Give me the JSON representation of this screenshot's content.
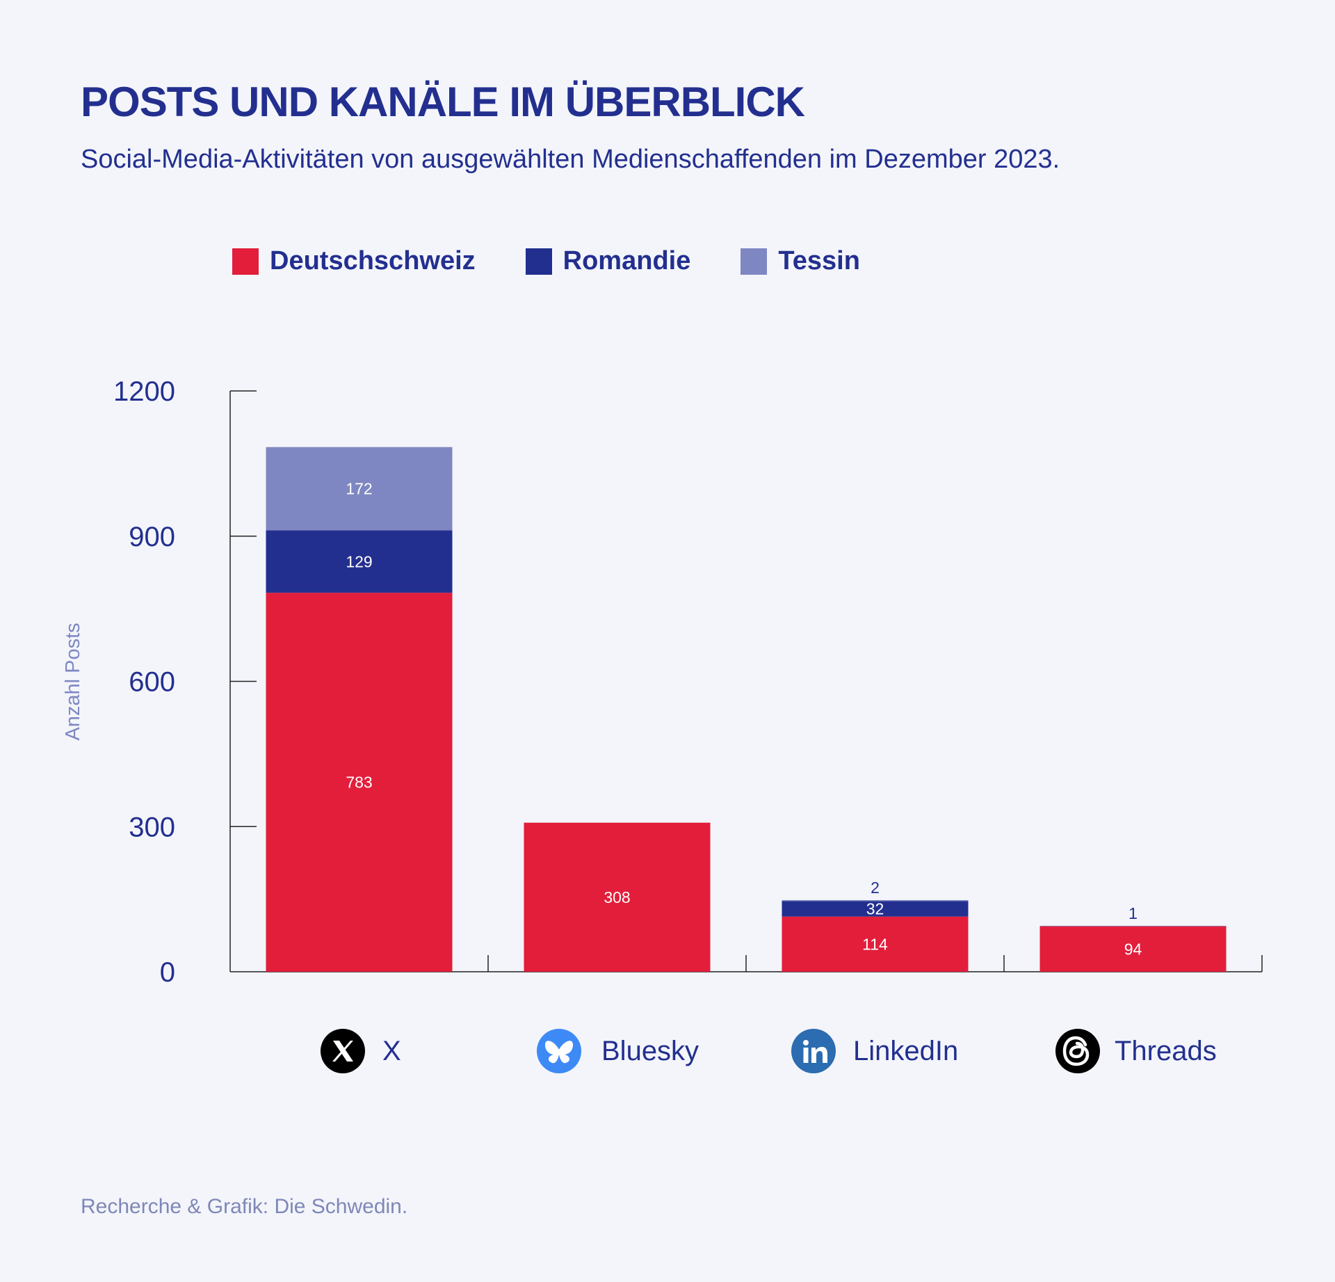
{
  "header": {
    "title": "POSTS UND KANÄLE IM ÜBERBLICK",
    "subtitle": "Social-Media-Aktivitäten von ausgewählten Medienschaffenden im Dezember 2023."
  },
  "legend": [
    {
      "label": "Deutschschweiz",
      "color": "#e21e3b"
    },
    {
      "label": "Romandie",
      "color": "#232f8f"
    },
    {
      "label": "Tessin",
      "color": "#7f87c2"
    }
  ],
  "footer": {
    "credit": "Recherche & Grafik: Die Schwedin."
  },
  "icons": [
    {
      "name": "x-logo-icon",
      "bg": "#000000"
    },
    {
      "name": "bluesky-logo-icon",
      "bg": "#3d8af7"
    },
    {
      "name": "linkedin-logo-icon",
      "bg": "#2c6cb0"
    },
    {
      "name": "threads-logo-icon",
      "bg": "#000000"
    }
  ],
  "chart_data": {
    "type": "bar",
    "stacked": true,
    "title": "POSTS UND KANÄLE IM ÜBERBLICK",
    "subtitle": "Social-Media-Aktivitäten von ausgewählten Medienschaffenden im Dezember 2023.",
    "categories": [
      "X",
      "Bluesky",
      "LinkedIn",
      "Threads"
    ],
    "series": [
      {
        "name": "Deutschschweiz",
        "color": "#e21e3b",
        "values": [
          783,
          308,
          114,
          94
        ]
      },
      {
        "name": "Romandie",
        "color": "#232f8f",
        "values": [
          129,
          0,
          32,
          0
        ]
      },
      {
        "name": "Tessin",
        "color": "#7f87c2",
        "values": [
          172,
          0,
          2,
          1
        ]
      }
    ],
    "labels": [
      [
        "783",
        "308",
        "114",
        "94"
      ],
      [
        "129",
        "",
        "32",
        ""
      ],
      [
        "172",
        "",
        "2",
        "1"
      ]
    ],
    "ylabel": "Anzahl Posts",
    "xlabel": "",
    "ylim": [
      0,
      1200
    ],
    "yticks": [
      0,
      300,
      600,
      900,
      1200
    ],
    "legend_position": "top",
    "grid": false
  }
}
